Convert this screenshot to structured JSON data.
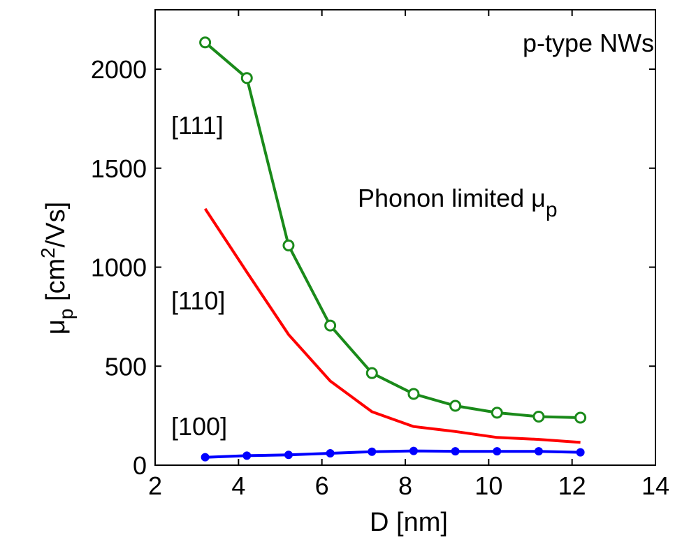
{
  "chart_data": {
    "type": "line",
    "xlabel": "D [nm]",
    "ylabel_parts": {
      "mu": "μ",
      "sub": "p",
      "unit_pre": " [cm",
      "unit_sup": "2",
      "unit_post": "/Vs]"
    },
    "xlim": [
      2,
      14
    ],
    "ylim": [
      0,
      2300
    ],
    "xticks": [
      2,
      4,
      6,
      8,
      10,
      12,
      14
    ],
    "yticks": [
      0,
      500,
      1000,
      1500,
      2000
    ],
    "grid": false,
    "annotations": {
      "title_text": "p-type NWs",
      "phonon_text": "Phonon limited ",
      "phonon_mu": "μ",
      "phonon_sub": "p"
    },
    "series": [
      {
        "label": "[111]",
        "color": "#1a8a1a",
        "marker": "circle-open",
        "x": [
          3.2,
          4.2,
          5.2,
          6.2,
          7.2,
          8.2,
          9.2,
          10.2,
          11.2,
          12.2
        ],
        "y": [
          2135,
          1955,
          1110,
          705,
          465,
          360,
          300,
          265,
          245,
          240
        ]
      },
      {
        "label": "[110]",
        "color": "#ff0000",
        "marker": "none",
        "x": [
          3.2,
          4.2,
          5.2,
          6.2,
          7.2,
          8.2,
          9.2,
          10.2,
          11.2,
          12.2
        ],
        "y": [
          1295,
          975,
          660,
          425,
          270,
          195,
          170,
          140,
          130,
          115
        ]
      },
      {
        "label": "[100]",
        "color": "#0000ff",
        "marker": "dot",
        "x": [
          3.2,
          4.2,
          5.2,
          6.2,
          7.2,
          8.2,
          9.2,
          10.2,
          11.2,
          12.2
        ],
        "y": [
          40,
          48,
          52,
          60,
          68,
          72,
          70,
          70,
          70,
          65
        ]
      }
    ]
  }
}
